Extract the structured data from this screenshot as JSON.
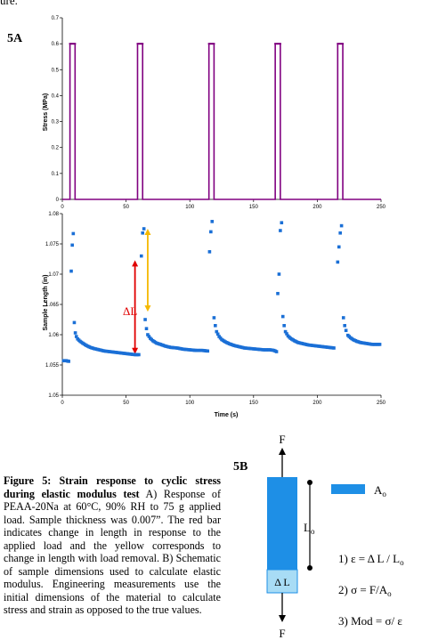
{
  "top_fragment": "ure.",
  "panel_a_label": "5A",
  "panel_b_label": "5B",
  "caption": {
    "title": "Figure 5: Strain response to cyclic stress during elastic modulus test",
    "body": " A) Response of PEAA-20Na at 60°C, 90% RH to 75 g applied load. Sample thickness was 0.007”. The red bar indicates change in length in response to the applied load and the yellow corresponds to change in length with load removal. B) Schematic of sample dimensions used to calculate elastic modulus. Engineering measurements use the initial dimensions of the material to calculate stress and strain as opposed to the true values."
  },
  "chart_data": [
    {
      "type": "line",
      "ylabel": "Stress (MPa)",
      "xlabel": "",
      "xlim": [
        0,
        250
      ],
      "ylim": [
        0,
        0.7
      ],
      "x_ticks": [
        "0",
        "50",
        "100",
        "150",
        "200",
        "250"
      ],
      "y_ticks": [
        "0",
        "0.1",
        "0.2",
        "0.3",
        "0.4",
        "0.5",
        "0.6",
        "0.7"
      ],
      "grid": false,
      "series_color": "#800080",
      "pulses": [
        [
          6,
          10
        ],
        [
          59,
          63
        ],
        [
          115,
          119
        ],
        [
          167,
          171
        ],
        [
          216,
          220
        ]
      ],
      "high_value": 0.6,
      "low_value": 0
    },
    {
      "type": "scatter",
      "ylabel": "Sample Length (in)",
      "xlabel": "Time (s)",
      "xlim": [
        0,
        250
      ],
      "ylim": [
        1.05,
        1.08
      ],
      "x_ticks": [
        "0",
        "50",
        "100",
        "150",
        "200",
        "250"
      ],
      "y_ticks": [
        "1.05",
        "1.055",
        "1.06",
        "1.065",
        "1.07",
        "1.075",
        "1.08"
      ],
      "grid": false,
      "series_color": "#1a6fd6",
      "points": [
        [
          1,
          1.0557
        ],
        [
          3,
          1.0557
        ],
        [
          5,
          1.0556
        ],
        [
          7,
          1.0705
        ],
        [
          7.8,
          1.0748
        ],
        [
          8.6,
          1.0767
        ],
        [
          9.4,
          1.062
        ],
        [
          10.2,
          1.0603
        ],
        [
          11,
          1.0597
        ],
        [
          12,
          1.0593
        ],
        [
          14,
          1.0589
        ],
        [
          16,
          1.0586
        ],
        [
          19,
          1.0582
        ],
        [
          22,
          1.0579
        ],
        [
          25,
          1.0577
        ],
        [
          29,
          1.0575
        ],
        [
          33,
          1.0573
        ],
        [
          37,
          1.0572
        ],
        [
          41,
          1.0571
        ],
        [
          45,
          1.057
        ],
        [
          49,
          1.0569
        ],
        [
          53,
          1.0568
        ],
        [
          57,
          1.0567
        ],
        [
          60,
          1.0567
        ],
        [
          62,
          1.073
        ],
        [
          63,
          1.0768
        ],
        [
          64,
          1.0775
        ],
        [
          65,
          1.0625
        ],
        [
          66,
          1.061
        ],
        [
          67,
          1.06
        ],
        [
          69,
          1.0594
        ],
        [
          71,
          1.059
        ],
        [
          74,
          1.0586
        ],
        [
          77,
          1.0584
        ],
        [
          81,
          1.0581
        ],
        [
          85,
          1.0579
        ],
        [
          90,
          1.0578
        ],
        [
          95,
          1.0576
        ],
        [
          100,
          1.0575
        ],
        [
          105,
          1.0574
        ],
        [
          110,
          1.0574
        ],
        [
          114,
          1.0573
        ],
        [
          115.5,
          1.0737
        ],
        [
          116.5,
          1.077
        ],
        [
          117.5,
          1.0787
        ],
        [
          119,
          1.0628
        ],
        [
          120,
          1.0615
        ],
        [
          121,
          1.0605
        ],
        [
          123,
          1.0597
        ],
        [
          125,
          1.0592
        ],
        [
          128,
          1.0588
        ],
        [
          131,
          1.0585
        ],
        [
          135,
          1.0582
        ],
        [
          139,
          1.058
        ],
        [
          143,
          1.0578
        ],
        [
          148,
          1.0577
        ],
        [
          153,
          1.0576
        ],
        [
          158,
          1.0575
        ],
        [
          163,
          1.0575
        ],
        [
          166,
          1.0574
        ],
        [
          168,
          1.0572
        ],
        [
          169,
          1.0668
        ],
        [
          170,
          1.07
        ],
        [
          171,
          1.0772
        ],
        [
          172,
          1.0785
        ],
        [
          173,
          1.063
        ],
        [
          174,
          1.0615
        ],
        [
          175,
          1.0605
        ],
        [
          177,
          1.0598
        ],
        [
          179,
          1.0594
        ],
        [
          182,
          1.059
        ],
        [
          185,
          1.0587
        ],
        [
          189,
          1.0585
        ],
        [
          193,
          1.0583
        ],
        [
          197,
          1.0582
        ],
        [
          201,
          1.0581
        ],
        [
          205,
          1.058
        ],
        [
          209,
          1.0579
        ],
        [
          213,
          1.0578
        ],
        [
          216,
          1.072
        ],
        [
          217,
          1.0745
        ],
        [
          218,
          1.0768
        ],
        [
          219,
          1.078
        ],
        [
          220.5,
          1.0628
        ],
        [
          221.5,
          1.0615
        ],
        [
          222.5,
          1.0607
        ],
        [
          224,
          1.0599
        ],
        [
          226,
          1.0595
        ],
        [
          228,
          1.0592
        ],
        [
          231,
          1.0589
        ],
        [
          234,
          1.0587
        ],
        [
          237,
          1.0586
        ],
        [
          240,
          1.0585
        ],
        [
          243,
          1.0584
        ],
        [
          246,
          1.0584
        ],
        [
          249,
          1.0584
        ]
      ],
      "annotations": {
        "delta_label": "ΔL",
        "red_bar": {
          "x": 57,
          "y_from": 1.0568,
          "y_to": 1.0723,
          "color": "#e00000"
        },
        "yellow_bar": {
          "x": 67,
          "y_from": 1.0638,
          "y_to": 1.0775,
          "color": "#f5b800"
        }
      }
    }
  ],
  "schematic": {
    "force_top": "F",
    "force_bottom": "F",
    "area_label": "A",
    "area_subscript": "o",
    "length_label": "L",
    "length_subscript": "o",
    "delta_label": "Δ L",
    "bar_color": "#1e8fe6",
    "delta_color": "#a8dcf5",
    "eq1": "1) ε  = Δ L / L",
    "eq1_sub": "o",
    "eq2": "2) σ = F/A",
    "eq2_sub": "o",
    "eq3": "3) Mod = σ/ ε"
  }
}
